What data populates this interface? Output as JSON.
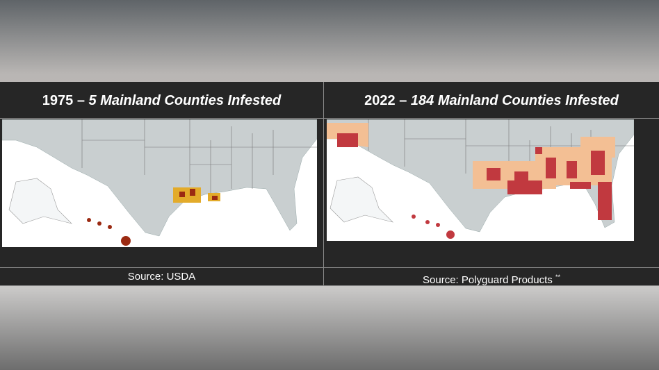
{
  "panels": [
    {
      "title_year": "1975 –",
      "title_emphasis": "5 Mainland Counties Infested",
      "source": "Source: USDA"
    },
    {
      "title_year": "2022 –",
      "title_emphasis": "184 Mainland Counties Infested",
      "source": "Source: Polyguard Products",
      "source_note": "**"
    }
  ]
}
